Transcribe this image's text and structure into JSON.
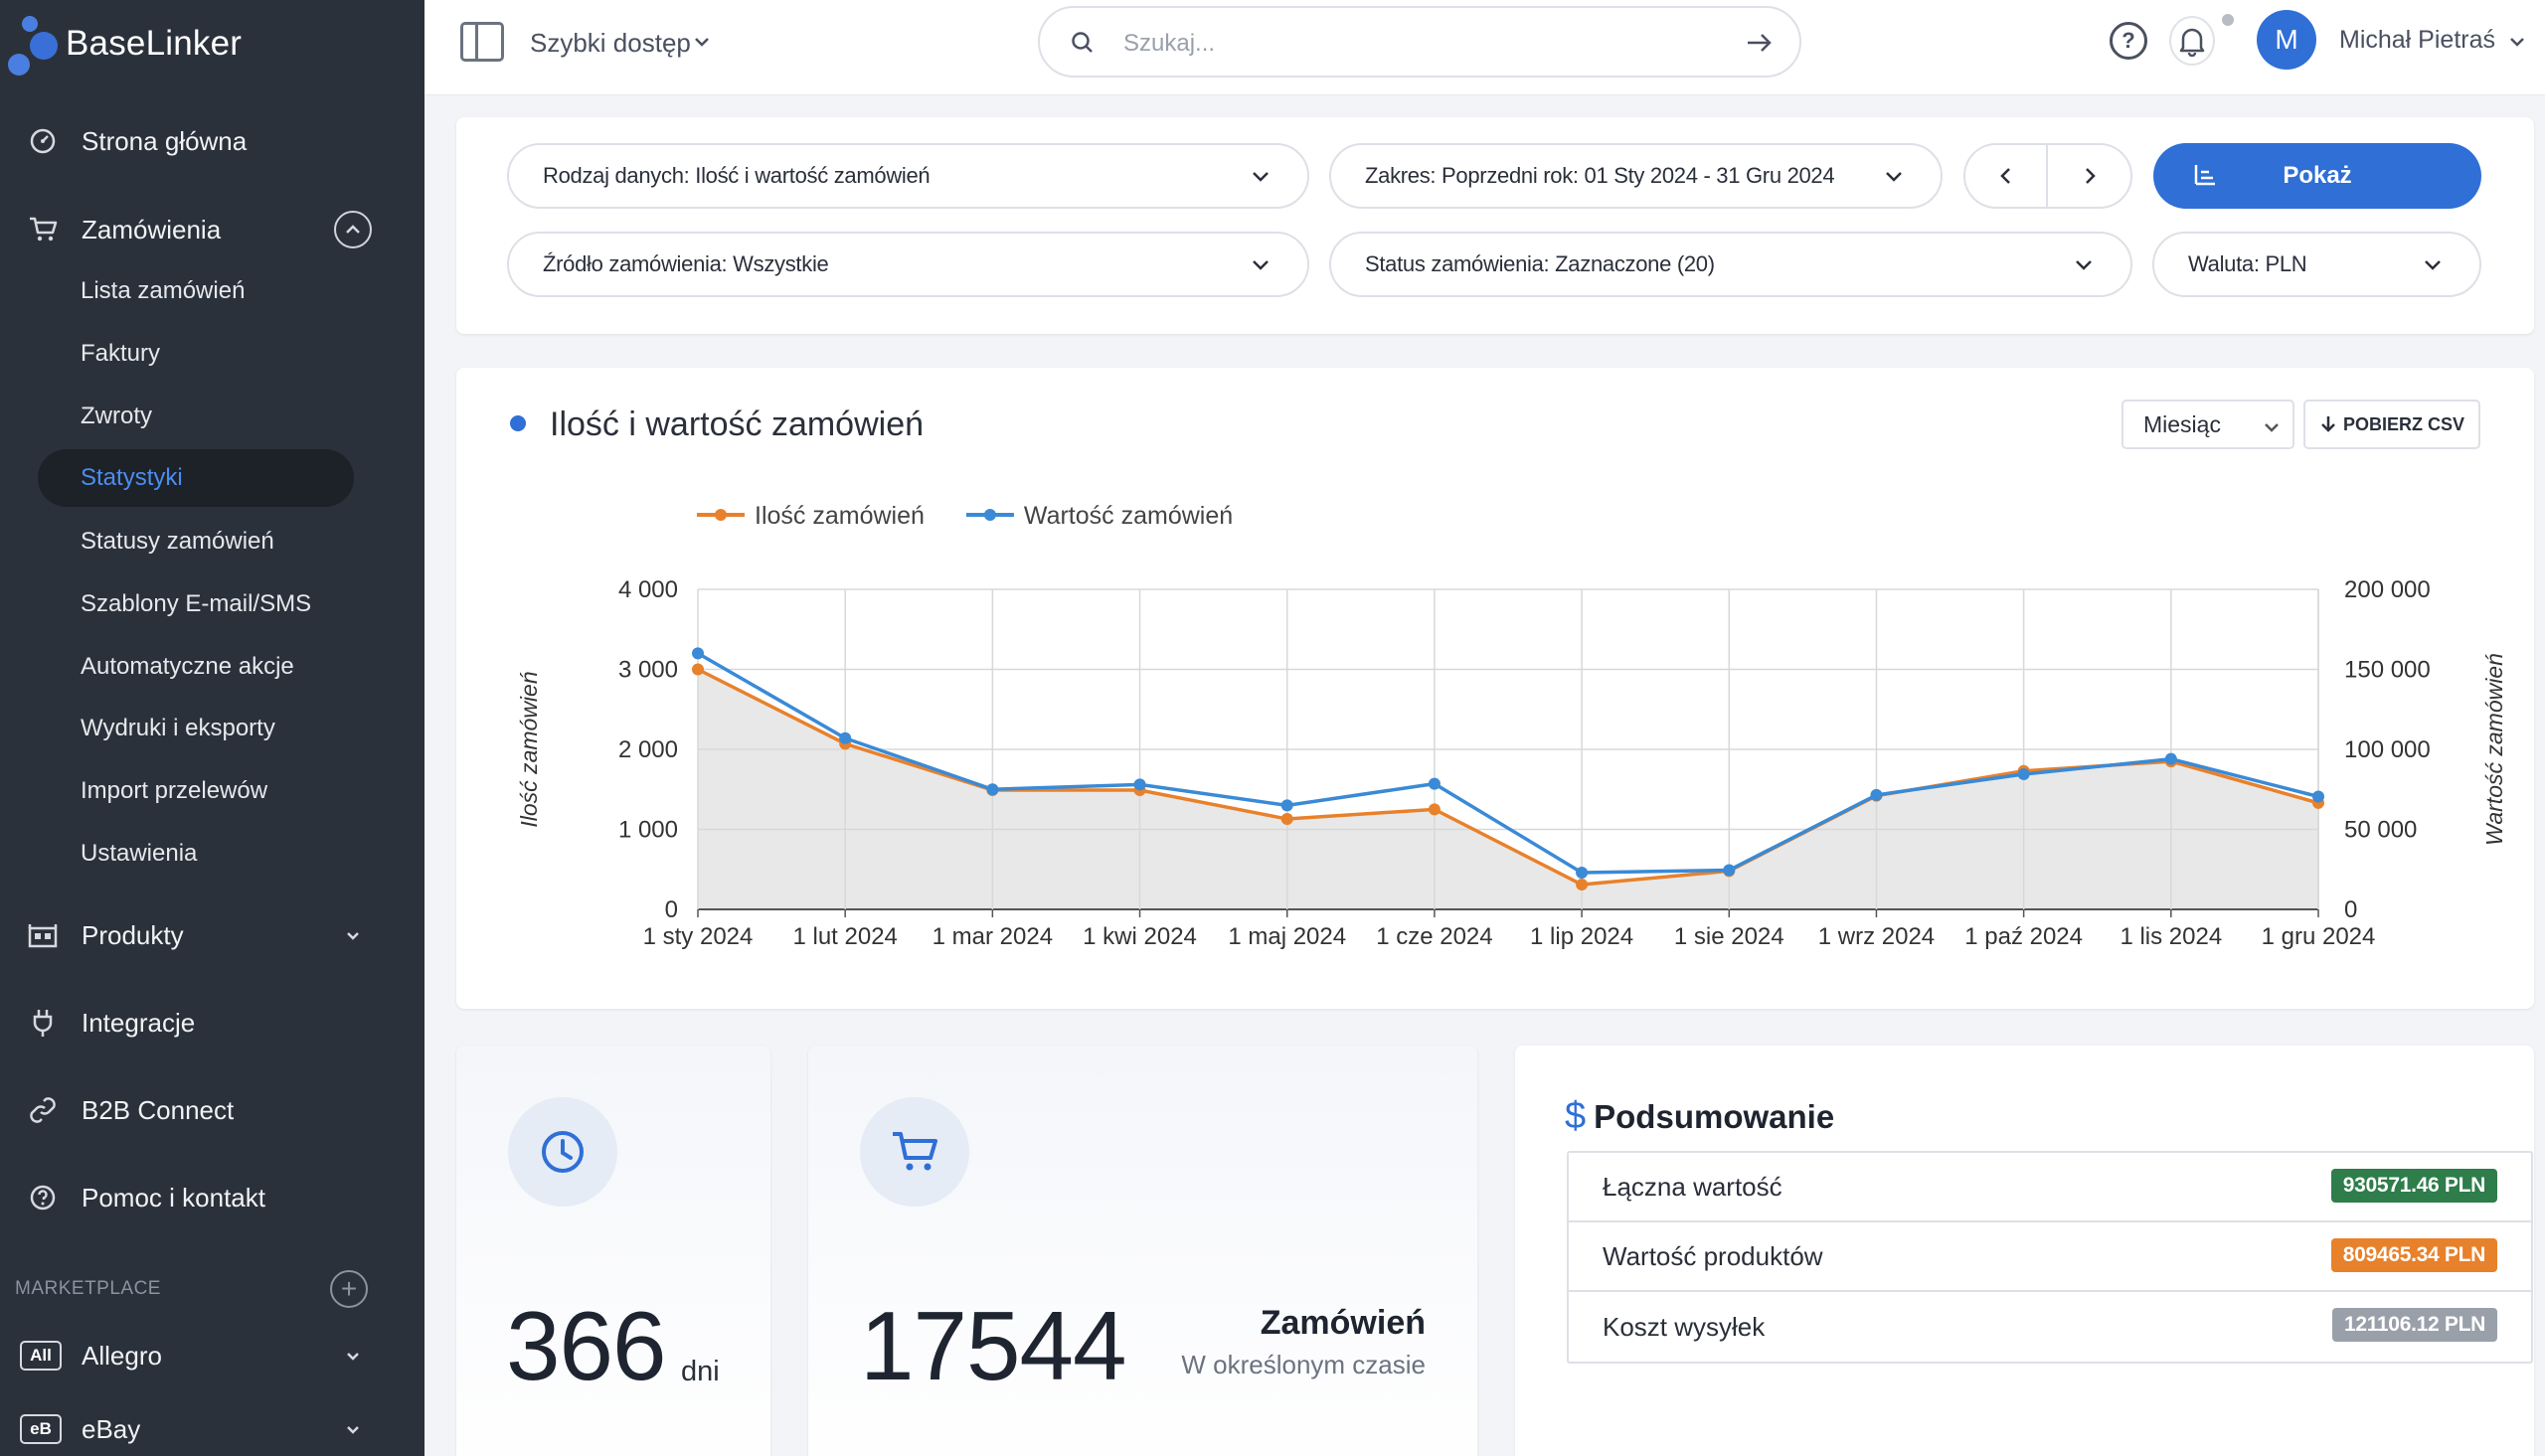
{
  "app": {
    "name": "BaseLinker"
  },
  "sidebar": {
    "main_items": [
      {
        "label": "Strona główna",
        "icon": "dashboard-icon"
      },
      {
        "label": "Zamówienia",
        "icon": "cart-icon"
      },
      {
        "label": "Produkty",
        "icon": "products-icon"
      },
      {
        "label": "Integracje",
        "icon": "plug-icon"
      },
      {
        "label": "B2B Connect",
        "icon": "link-icon"
      },
      {
        "label": "Pomoc i kontakt",
        "icon": "help-circle-icon"
      }
    ],
    "orders_sub": [
      "Lista zamówień",
      "Faktury",
      "Zwroty",
      "Statystyki",
      "Statusy zamówień",
      "Szablony E-mail/SMS",
      "Automatyczne akcje",
      "Wydruki i eksporty",
      "Import przelewów",
      "Ustawienia"
    ],
    "active_sub": "Statystyki",
    "section_label": "MARKETPLACE",
    "marketplaces": [
      {
        "badge": "All",
        "label": "Allegro"
      },
      {
        "badge": "eB",
        "label": "eBay"
      }
    ]
  },
  "topbar": {
    "quick_access": "Szybki dostęp",
    "search_placeholder": "Szukaj...",
    "avatar_letter": "M",
    "user_name": "Michał Pietraś"
  },
  "filters": {
    "data_type": "Rodzaj danych: Ilość i wartość zamówień",
    "range": "Zakres: Poprzedni rok: 01 Sty 2024 - 31 Gru 2024",
    "source": "Źródło zamówienia: Wszystkie",
    "status": "Status zamówienia: Zaznaczone (20)",
    "currency": "Waluta: PLN",
    "show_button": "Pokaż"
  },
  "chart_card": {
    "title": "Ilość i wartość zamówień",
    "period": "Miesiąc",
    "csv_button": "POBIERZ CSV"
  },
  "chart_data": {
    "type": "line",
    "categories": [
      "1 sty 2024",
      "1 lut 2024",
      "1 mar 2024",
      "1 kwi 2024",
      "1 maj 2024",
      "1 cze 2024",
      "1 lip 2024",
      "1 sie 2024",
      "1 wrz 2024",
      "1 paź 2024",
      "1 lis 2024",
      "1 gru 2024"
    ],
    "series": [
      {
        "name": "Ilość zamówień",
        "axis": "left",
        "color": "#e8812b",
        "values": [
          3000,
          2070,
          1490,
          1490,
          1130,
          1250,
          310,
          480,
          1420,
          1730,
          1850,
          1330
        ]
      },
      {
        "name": "Wartość zamówień",
        "axis": "right",
        "color": "#3a8ad6",
        "values": [
          160000,
          107000,
          75000,
          78000,
          65000,
          78500,
          23000,
          24500,
          71500,
          84500,
          94000,
          70500
        ]
      }
    ],
    "y_left": {
      "label": "Ilość zamówień",
      "min": 0,
      "max": 4000,
      "ticks": [
        "0",
        "1 000",
        "2 000",
        "3 000",
        "4 000"
      ]
    },
    "y_right": {
      "label": "Wartość zamówień",
      "min": 0,
      "max": 200000,
      "ticks": [
        "0",
        "50 000",
        "100 000",
        "150 000",
        "200 000"
      ]
    },
    "grid": true,
    "legend": "top-left",
    "area_fill": "#e8e8e8"
  },
  "stats": {
    "days_value": "366",
    "days_unit": "dni",
    "orders_value": "17544",
    "orders_title": "Zamówień",
    "orders_sub": "W określonym czasie"
  },
  "summary": {
    "title": "Podsumowanie",
    "rows": [
      {
        "label": "Łączna wartość",
        "value": "930571.46 PLN",
        "color": "#2e7d4a"
      },
      {
        "label": "Wartość produktów",
        "value": "809465.34 PLN",
        "color": "#e8812b"
      },
      {
        "label": "Koszt wysyłek",
        "value": "121106.12 PLN",
        "color": "#9aa0aa"
      }
    ]
  }
}
